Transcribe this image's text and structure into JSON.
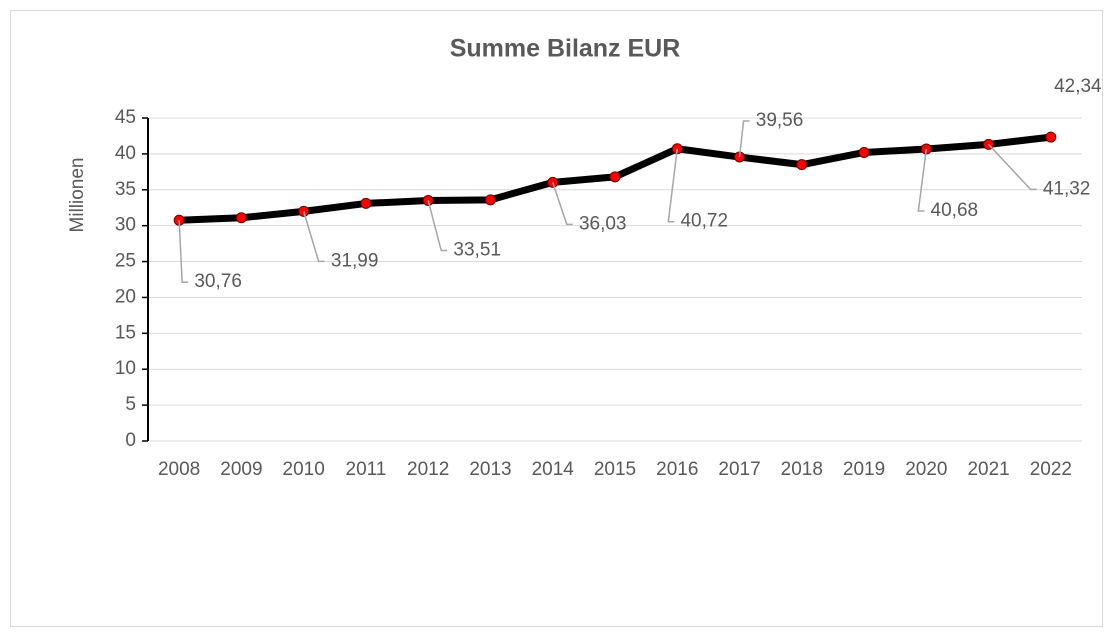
{
  "chart_data": {
    "type": "line",
    "title": "Summe Bilanz EUR",
    "y_label": "Millionen",
    "categories": [
      "2008",
      "2009",
      "2010",
      "2011",
      "2012",
      "2013",
      "2014",
      "2015",
      "2016",
      "2017",
      "2018",
      "2019",
      "2020",
      "2021",
      "2022"
    ],
    "series": [
      {
        "name": "Summe Bilanz EUR",
        "color": "#000000",
        "marker_color": "#ff0000",
        "values": [
          30.76,
          31.1,
          31.99,
          33.1,
          33.51,
          33.6,
          36.03,
          36.8,
          40.72,
          39.56,
          38.5,
          40.2,
          40.68,
          41.32,
          42.34
        ],
        "value_labels": [
          "30,76",
          null,
          "31,99",
          null,
          "33,51",
          null,
          "36,03",
          null,
          "40,72",
          "39,56",
          null,
          null,
          "40,68",
          "41,32",
          "42,34"
        ]
      }
    ],
    "ylim": [
      0,
      45
    ],
    "yticks": [
      0,
      5,
      10,
      15,
      20,
      25,
      30,
      35,
      40,
      45
    ],
    "grid": true
  }
}
